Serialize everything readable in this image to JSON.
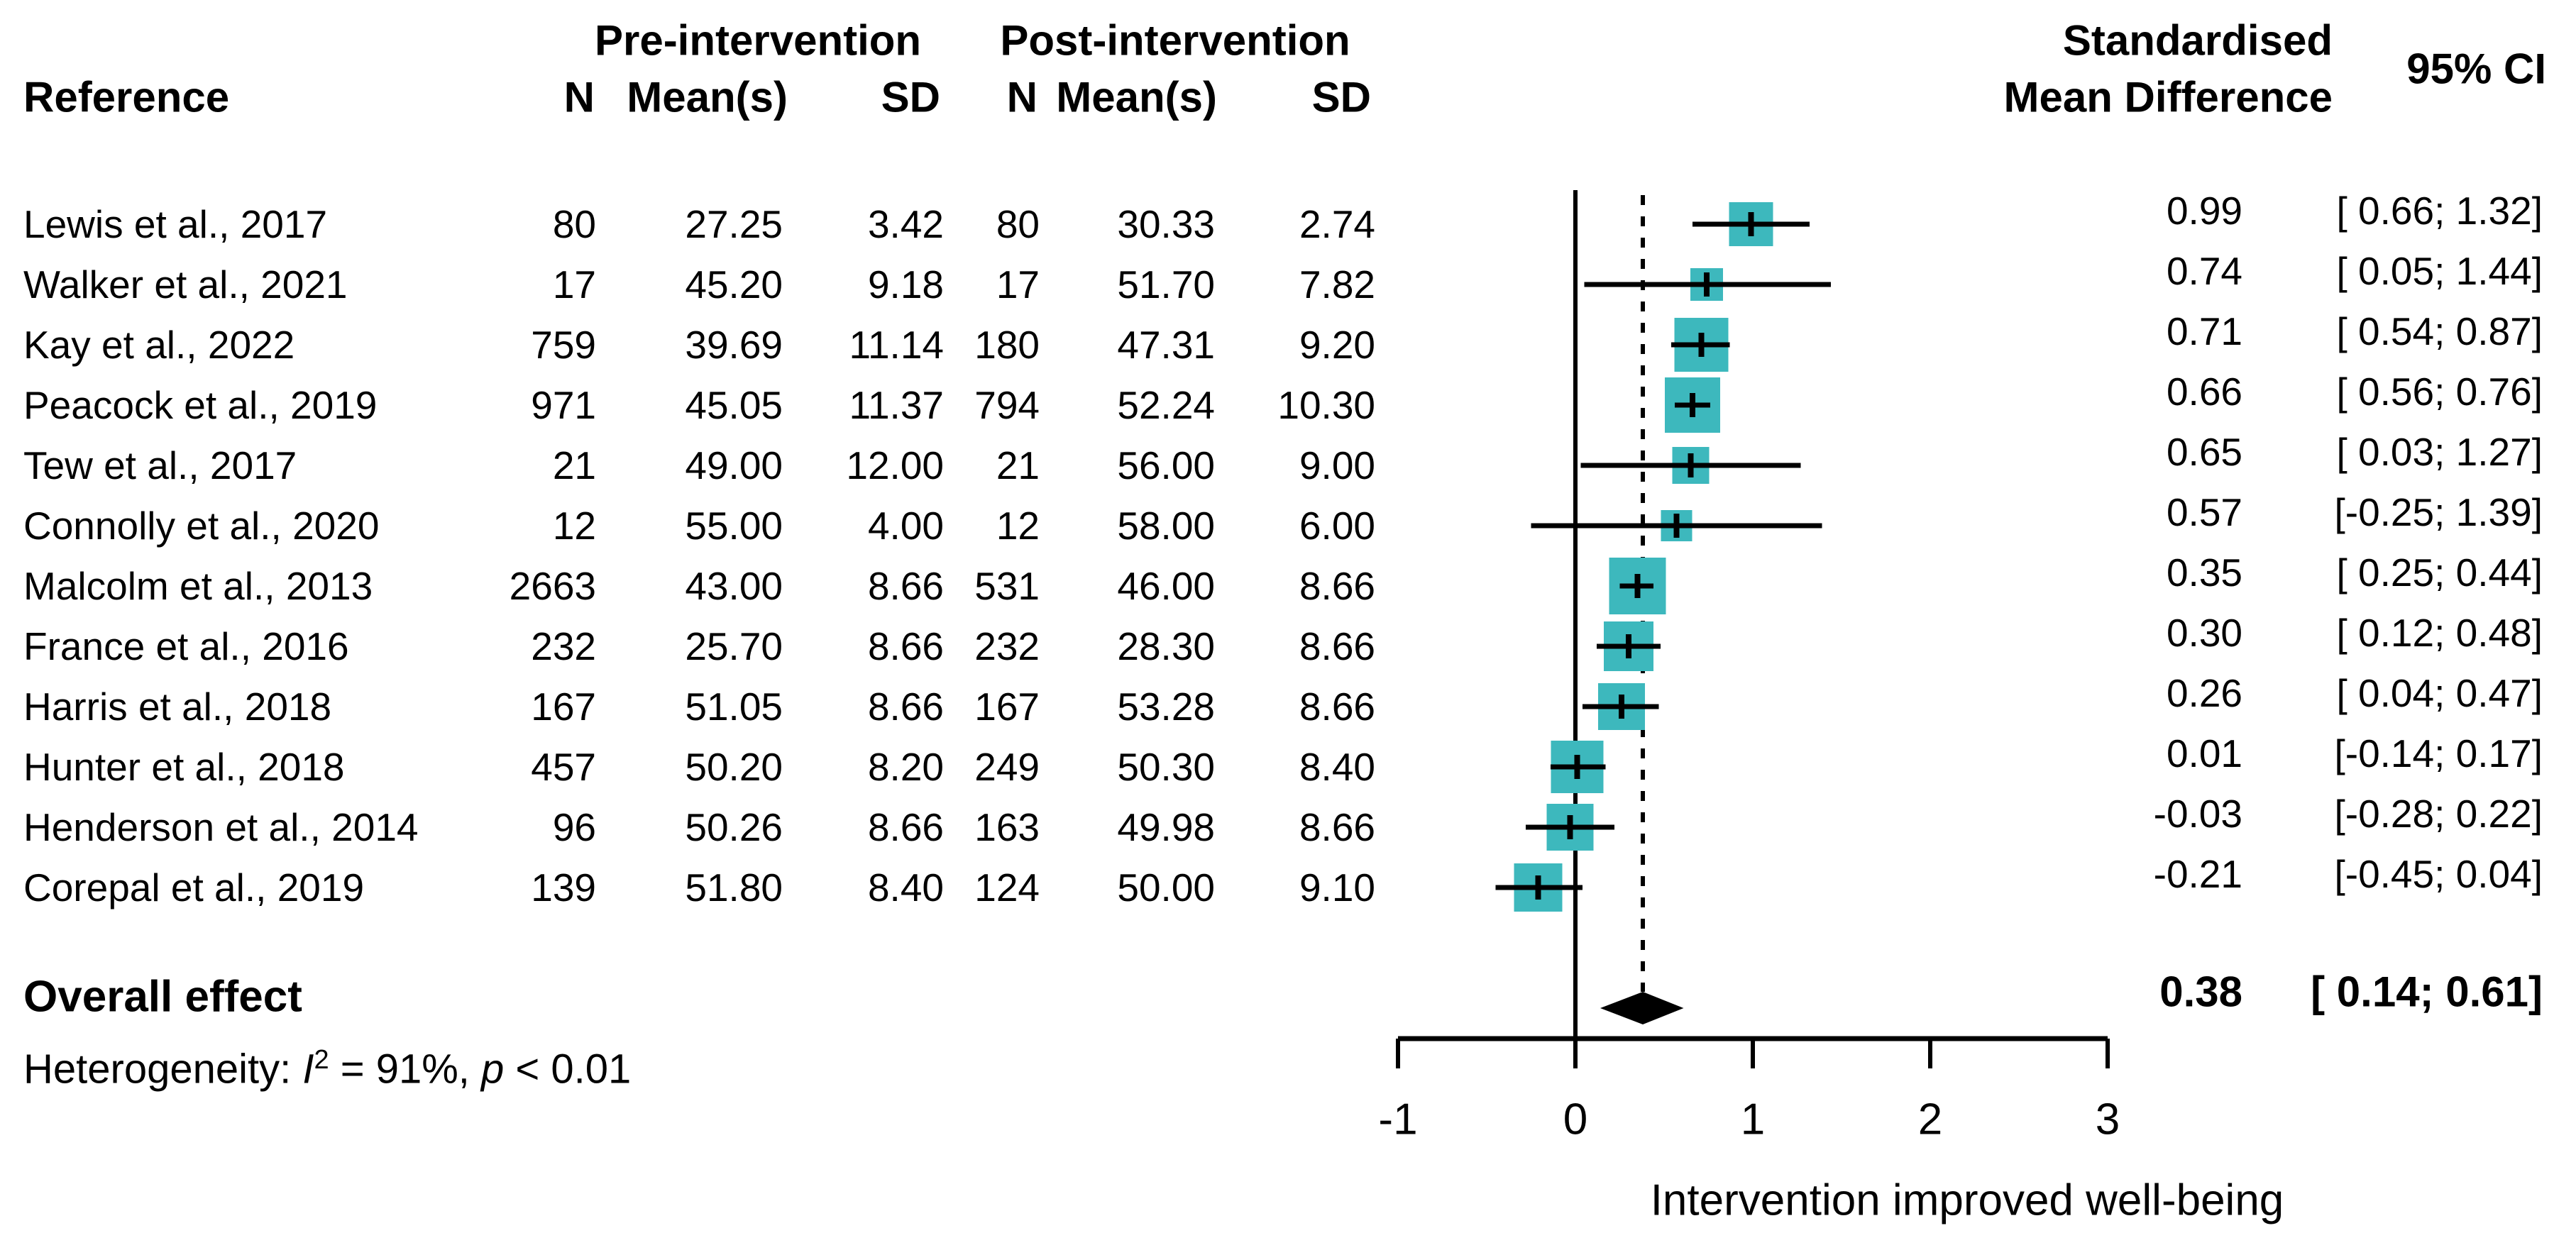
{
  "header": {
    "reference": "Reference",
    "pre_group": "Pre-intervention",
    "post_group": "Post-intervention",
    "n1": "N",
    "mean1": "Mean(s)",
    "sd1": "SD",
    "n2": "N",
    "mean2": "Mean(s)",
    "sd2": "SD",
    "smd_line1": "Standardised",
    "smd_line2": "Mean Difference",
    "ci": "95% CI"
  },
  "chart_data": {
    "type": "forest",
    "xlabel": "Intervention improved well-being",
    "x_ticks": [
      -1,
      0,
      1,
      2,
      3
    ],
    "xlim": [
      -1,
      3
    ],
    "reference_line_x": 0,
    "dashed_line_x": 0.38,
    "legend_position": "none",
    "grid": false,
    "colors": {
      "marker": "#3db8bd",
      "line": "#000000"
    },
    "studies": [
      {
        "name": "Lewis et al., 2017",
        "pre_n": "80",
        "pre_mean": "27.25",
        "pre_sd": "3.42",
        "post_n": "80",
        "post_mean": "30.33",
        "post_sd": "2.74",
        "smd": 0.99,
        "smd_text": "0.99",
        "ci_lo": 0.66,
        "ci_hi": 1.32,
        "ci_text": "[ 0.66; 1.32]",
        "marker_size": 62
      },
      {
        "name": "Walker et al., 2021",
        "pre_n": "17",
        "pre_mean": "45.20",
        "pre_sd": "9.18",
        "post_n": "17",
        "post_mean": "51.70",
        "post_sd": "7.82",
        "smd": 0.74,
        "smd_text": "0.74",
        "ci_lo": 0.05,
        "ci_hi": 1.44,
        "ci_text": "[ 0.05; 1.44]",
        "marker_size": 46
      },
      {
        "name": "Kay et al., 2022",
        "pre_n": "759",
        "pre_mean": "39.69",
        "pre_sd": "11.14",
        "post_n": "180",
        "post_mean": "47.31",
        "post_sd": "9.20",
        "smd": 0.71,
        "smd_text": "0.71",
        "ci_lo": 0.54,
        "ci_hi": 0.87,
        "ci_text": "[ 0.54; 0.87]",
        "marker_size": 76
      },
      {
        "name": "Peacock et al., 2019",
        "pre_n": "971",
        "pre_mean": "45.05",
        "pre_sd": "11.37",
        "post_n": "794",
        "post_mean": "52.24",
        "post_sd": "10.30",
        "smd": 0.66,
        "smd_text": "0.66",
        "ci_lo": 0.56,
        "ci_hi": 0.76,
        "ci_text": "[ 0.56; 0.76]",
        "marker_size": 78
      },
      {
        "name": "Tew et al., 2017",
        "pre_n": "21",
        "pre_mean": "49.00",
        "pre_sd": "12.00",
        "post_n": "21",
        "post_mean": "56.00",
        "post_sd": "9.00",
        "smd": 0.65,
        "smd_text": "0.65",
        "ci_lo": 0.03,
        "ci_hi": 1.27,
        "ci_text": "[ 0.03; 1.27]",
        "marker_size": 52
      },
      {
        "name": "Connolly et al., 2020",
        "pre_n": "12",
        "pre_mean": "55.00",
        "pre_sd": "4.00",
        "post_n": "12",
        "post_mean": "58.00",
        "post_sd": "6.00",
        "smd": 0.57,
        "smd_text": "0.57",
        "ci_lo": -0.25,
        "ci_hi": 1.39,
        "ci_text": "[-0.25; 1.39]",
        "marker_size": 44
      },
      {
        "name": "Malcolm et al., 2013",
        "pre_n": "2663",
        "pre_mean": "43.00",
        "pre_sd": "8.66",
        "post_n": "531",
        "post_mean": "46.00",
        "post_sd": "8.66",
        "smd": 0.35,
        "smd_text": "0.35",
        "ci_lo": 0.25,
        "ci_hi": 0.44,
        "ci_text": "[ 0.25; 0.44]",
        "marker_size": 80
      },
      {
        "name": "France et al., 2016",
        "pre_n": "232",
        "pre_mean": "25.70",
        "pre_sd": "8.66",
        "post_n": "232",
        "post_mean": "28.30",
        "post_sd": "8.66",
        "smd": 0.3,
        "smd_text": "0.30",
        "ci_lo": 0.12,
        "ci_hi": 0.48,
        "ci_text": "[ 0.12; 0.48]",
        "marker_size": 70
      },
      {
        "name": "Harris et al., 2018",
        "pre_n": "167",
        "pre_mean": "51.05",
        "pre_sd": "8.66",
        "post_n": "167",
        "post_mean": "53.28",
        "post_sd": "8.66",
        "smd": 0.26,
        "smd_text": "0.26",
        "ci_lo": 0.04,
        "ci_hi": 0.47,
        "ci_text": "[ 0.04; 0.47]",
        "marker_size": 66
      },
      {
        "name": "Hunter et al., 2018",
        "pre_n": "457",
        "pre_mean": "50.20",
        "pre_sd": "8.20",
        "post_n": "249",
        "post_mean": "50.30",
        "post_sd": "8.40",
        "smd": 0.01,
        "smd_text": "0.01",
        "ci_lo": -0.14,
        "ci_hi": 0.17,
        "ci_text": "[-0.14; 0.17]",
        "marker_size": 74
      },
      {
        "name": "Henderson et al., 2014",
        "pre_n": "96",
        "pre_mean": "50.26",
        "pre_sd": "8.66",
        "post_n": "163",
        "post_mean": "49.98",
        "post_sd": "8.66",
        "smd": -0.03,
        "smd_text": "-0.03",
        "ci_lo": -0.28,
        "ci_hi": 0.22,
        "ci_text": "[-0.28; 0.22]",
        "marker_size": 66
      },
      {
        "name": "Corepal et al., 2019",
        "pre_n": "139",
        "pre_mean": "51.80",
        "pre_sd": "8.40",
        "post_n": "124",
        "post_mean": "50.00",
        "post_sd": "9.10",
        "smd": -0.21,
        "smd_text": "-0.21",
        "ci_lo": -0.45,
        "ci_hi": 0.04,
        "ci_text": "[-0.45; 0.04]",
        "marker_size": 68
      }
    ],
    "overall": {
      "label": "Overall effect",
      "smd": 0.38,
      "ci_lo": 0.14,
      "ci_hi": 0.61,
      "smd_text": "0.38",
      "ci_text": "[ 0.14; 0.61]"
    },
    "heterogeneity": {
      "prefix": "Heterogeneity: ",
      "i_symbol": "I",
      "i_sup": "2",
      "mid": " = 91%, ",
      "p_symbol": "p",
      "tail": " < 0.01"
    }
  }
}
